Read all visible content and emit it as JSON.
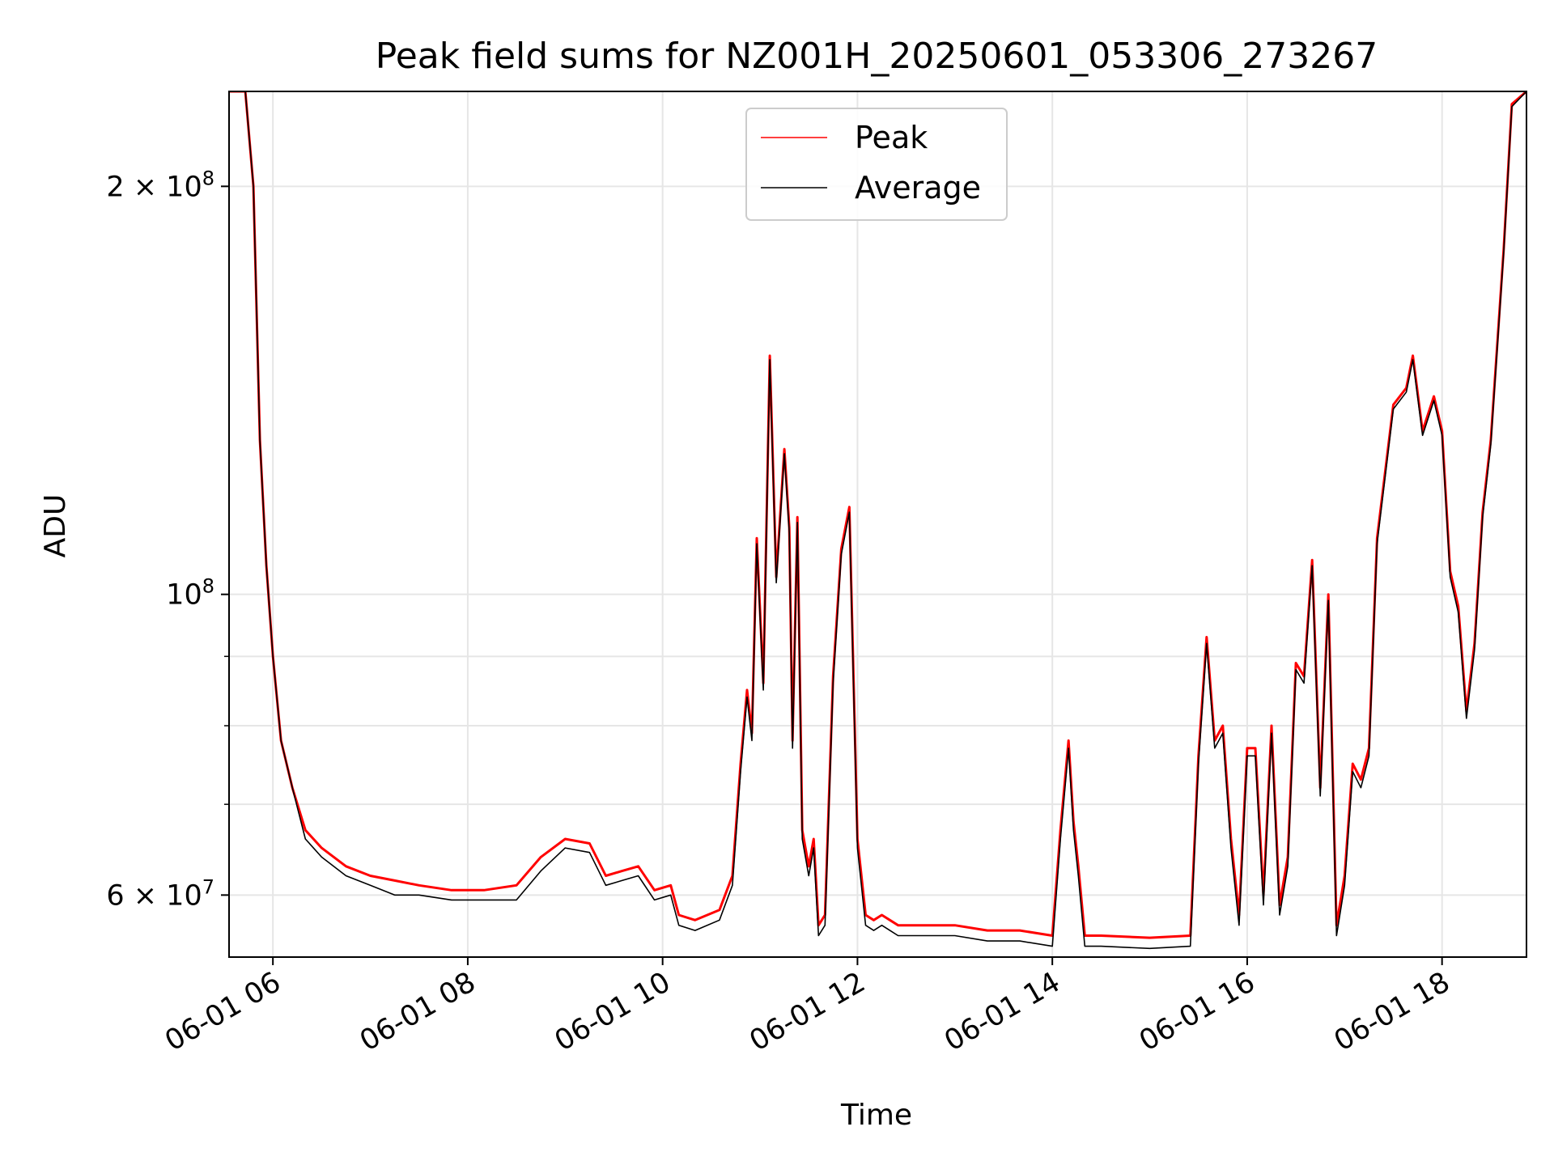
{
  "chart_data": {
    "type": "line",
    "title": "Peak field sums for NZ001H_20250601_053306_273267",
    "xlabel": "Time",
    "ylabel": "ADU",
    "yscale": "log",
    "xlim": [
      "2025-06-01 05:33",
      "2025-06-01 18:52"
    ],
    "ylim": [
      54000000,
      235000000
    ],
    "x_ticks": [
      "06-01 06",
      "06-01 08",
      "06-01 10",
      "06-01 12",
      "06-01 14",
      "06-01 16",
      "06-01 18"
    ],
    "y_ticks": [
      {
        "value": 200000000,
        "mantissa": "2",
        "exponent": "8"
      },
      {
        "value": 100000000,
        "mantissa": "",
        "exponent": "8"
      },
      {
        "value": 60000000,
        "mantissa": "6",
        "exponent": "7"
      }
    ],
    "grid": true,
    "legend_position": "upper center",
    "series": [
      {
        "name": "Peak",
        "color": "#ff0000",
        "x": [
          "2025-06-01 05:33",
          "2025-06-01 05:43",
          "2025-06-01 05:48",
          "2025-06-01 05:52",
          "2025-06-01 05:56",
          "2025-06-01 06:00",
          "2025-06-01 06:05",
          "2025-06-01 06:12",
          "2025-06-01 06:20",
          "2025-06-01 06:30",
          "2025-06-01 06:45",
          "2025-06-01 07:00",
          "2025-06-01 07:15",
          "2025-06-01 07:30",
          "2025-06-01 07:50",
          "2025-06-01 08:10",
          "2025-06-01 08:30",
          "2025-06-01 08:45",
          "2025-06-01 09:00",
          "2025-06-01 09:15",
          "2025-06-01 09:25",
          "2025-06-01 09:35",
          "2025-06-01 09:45",
          "2025-06-01 09:55",
          "2025-06-01 10:05",
          "2025-06-01 10:10",
          "2025-06-01 10:20",
          "2025-06-01 10:35",
          "2025-06-01 10:43",
          "2025-06-01 10:48",
          "2025-06-01 10:52",
          "2025-06-01 10:55",
          "2025-06-01 10:58",
          "2025-06-01 11:02",
          "2025-06-01 11:06",
          "2025-06-01 11:10",
          "2025-06-01 11:15",
          "2025-06-01 11:18",
          "2025-06-01 11:20",
          "2025-06-01 11:23",
          "2025-06-01 11:26",
          "2025-06-01 11:30",
          "2025-06-01 11:33",
          "2025-06-01 11:36",
          "2025-06-01 11:40",
          "2025-06-01 11:45",
          "2025-06-01 11:50",
          "2025-06-01 11:55",
          "2025-06-01 12:00",
          "2025-06-01 12:05",
          "2025-06-01 12:10",
          "2025-06-01 12:15",
          "2025-06-01 12:20",
          "2025-06-01 12:25",
          "2025-06-01 12:30",
          "2025-06-01 12:40",
          "2025-06-01 13:00",
          "2025-06-01 13:20",
          "2025-06-01 13:40",
          "2025-06-01 14:00",
          "2025-06-01 14:05",
          "2025-06-01 14:10",
          "2025-06-01 14:13",
          "2025-06-01 14:16",
          "2025-06-01 14:20",
          "2025-06-01 14:25",
          "2025-06-01 14:30",
          "2025-06-01 15:00",
          "2025-06-01 15:25",
          "2025-06-01 15:30",
          "2025-06-01 15:35",
          "2025-06-01 15:40",
          "2025-06-01 15:45",
          "2025-06-01 15:50",
          "2025-06-01 15:55",
          "2025-06-01 16:00",
          "2025-06-01 16:05",
          "2025-06-01 16:10",
          "2025-06-01 16:15",
          "2025-06-01 16:20",
          "2025-06-01 16:25",
          "2025-06-01 16:30",
          "2025-06-01 16:35",
          "2025-06-01 16:40",
          "2025-06-01 16:45",
          "2025-06-01 16:50",
          "2025-06-01 16:55",
          "2025-06-01 17:00",
          "2025-06-01 17:05",
          "2025-06-01 17:10",
          "2025-06-01 17:15",
          "2025-06-01 17:20",
          "2025-06-01 17:30",
          "2025-06-01 17:38",
          "2025-06-01 17:42",
          "2025-06-01 17:48",
          "2025-06-01 17:55",
          "2025-06-01 18:00",
          "2025-06-01 18:05",
          "2025-06-01 18:10",
          "2025-06-01 18:15",
          "2025-06-01 18:20",
          "2025-06-01 18:25",
          "2025-06-01 18:30",
          "2025-06-01 18:38",
          "2025-06-01 18:43",
          "2025-06-01 18:52"
        ],
        "y": [
          235000000,
          235000000,
          200000000,
          130000000,
          105000000,
          90000000,
          78000000,
          72000000,
          67000000,
          65000000,
          63000000,
          62000000,
          61500000,
          61000000,
          60500000,
          60500000,
          61000000,
          64000000,
          66000000,
          65500000,
          62000000,
          62500000,
          63000000,
          60500000,
          61000000,
          58000000,
          57500000,
          58500000,
          62000000,
          75000000,
          85000000,
          79000000,
          110000000,
          86000000,
          150000000,
          103000000,
          128000000,
          112000000,
          78000000,
          114000000,
          67000000,
          63000000,
          66000000,
          57000000,
          58000000,
          87000000,
          108000000,
          116000000,
          66000000,
          58000000,
          57500000,
          58000000,
          57500000,
          57000000,
          57000000,
          57000000,
          57000000,
          56500000,
          56500000,
          56000000,
          67000000,
          78000000,
          68000000,
          63000000,
          56000000,
          56000000,
          56000000,
          55800000,
          56000000,
          76000000,
          93000000,
          78000000,
          80000000,
          66000000,
          58000000,
          77000000,
          77000000,
          60000000,
          80000000,
          59000000,
          64000000,
          89000000,
          87000000,
          106000000,
          72000000,
          100000000,
          57000000,
          62000000,
          75000000,
          73000000,
          77000000,
          110000000,
          138000000,
          142000000,
          150000000,
          132000000,
          140000000,
          132000000,
          104000000,
          98000000,
          82000000,
          92000000,
          115000000,
          130000000,
          180000000,
          230000000,
          235000000
        ]
      },
      {
        "name": "Average",
        "color": "#000000",
        "x": [
          "2025-06-01 05:33",
          "2025-06-01 05:43",
          "2025-06-01 05:48",
          "2025-06-01 05:52",
          "2025-06-01 05:56",
          "2025-06-01 06:00",
          "2025-06-01 06:05",
          "2025-06-01 06:12",
          "2025-06-01 06:20",
          "2025-06-01 06:30",
          "2025-06-01 06:45",
          "2025-06-01 07:00",
          "2025-06-01 07:15",
          "2025-06-01 07:30",
          "2025-06-01 07:50",
          "2025-06-01 08:10",
          "2025-06-01 08:30",
          "2025-06-01 08:45",
          "2025-06-01 09:00",
          "2025-06-01 09:15",
          "2025-06-01 09:25",
          "2025-06-01 09:35",
          "2025-06-01 09:45",
          "2025-06-01 09:55",
          "2025-06-01 10:05",
          "2025-06-01 10:10",
          "2025-06-01 10:20",
          "2025-06-01 10:35",
          "2025-06-01 10:43",
          "2025-06-01 10:48",
          "2025-06-01 10:52",
          "2025-06-01 10:55",
          "2025-06-01 10:58",
          "2025-06-01 11:02",
          "2025-06-01 11:06",
          "2025-06-01 11:10",
          "2025-06-01 11:15",
          "2025-06-01 11:18",
          "2025-06-01 11:20",
          "2025-06-01 11:23",
          "2025-06-01 11:26",
          "2025-06-01 11:30",
          "2025-06-01 11:33",
          "2025-06-01 11:36",
          "2025-06-01 11:40",
          "2025-06-01 11:45",
          "2025-06-01 11:50",
          "2025-06-01 11:55",
          "2025-06-01 12:00",
          "2025-06-01 12:05",
          "2025-06-01 12:10",
          "2025-06-01 12:15",
          "2025-06-01 12:20",
          "2025-06-01 12:25",
          "2025-06-01 12:30",
          "2025-06-01 12:40",
          "2025-06-01 13:00",
          "2025-06-01 13:20",
          "2025-06-01 13:40",
          "2025-06-01 14:00",
          "2025-06-01 14:05",
          "2025-06-01 14:10",
          "2025-06-01 14:13",
          "2025-06-01 14:16",
          "2025-06-01 14:20",
          "2025-06-01 14:25",
          "2025-06-01 14:30",
          "2025-06-01 15:00",
          "2025-06-01 15:25",
          "2025-06-01 15:30",
          "2025-06-01 15:35",
          "2025-06-01 15:40",
          "2025-06-01 15:45",
          "2025-06-01 15:50",
          "2025-06-01 15:55",
          "2025-06-01 16:00",
          "2025-06-01 16:05",
          "2025-06-01 16:10",
          "2025-06-01 16:15",
          "2025-06-01 16:20",
          "2025-06-01 16:25",
          "2025-06-01 16:30",
          "2025-06-01 16:35",
          "2025-06-01 16:40",
          "2025-06-01 16:45",
          "2025-06-01 16:50",
          "2025-06-01 16:55",
          "2025-06-01 17:00",
          "2025-06-01 17:05",
          "2025-06-01 17:10",
          "2025-06-01 17:15",
          "2025-06-01 17:20",
          "2025-06-01 17:30",
          "2025-06-01 17:38",
          "2025-06-01 17:42",
          "2025-06-01 17:48",
          "2025-06-01 17:55",
          "2025-06-01 18:00",
          "2025-06-01 18:05",
          "2025-06-01 18:10",
          "2025-06-01 18:15",
          "2025-06-01 18:20",
          "2025-06-01 18:25",
          "2025-06-01 18:30",
          "2025-06-01 18:38",
          "2025-06-01 18:43",
          "2025-06-01 18:52"
        ],
        "y": [
          235000000,
          235000000,
          200000000,
          130000000,
          105000000,
          90000000,
          78000000,
          72000000,
          66000000,
          64000000,
          62000000,
          61000000,
          60000000,
          60000000,
          59500000,
          59500000,
          59500000,
          62500000,
          65000000,
          64500000,
          61000000,
          61500000,
          62000000,
          59500000,
          60000000,
          57000000,
          56500000,
          57500000,
          61000000,
          74000000,
          84000000,
          78000000,
          109000000,
          85000000,
          149000000,
          102000000,
          127000000,
          111000000,
          77000000,
          113000000,
          66000000,
          62000000,
          65000000,
          56000000,
          57000000,
          86000000,
          107000000,
          115000000,
          65000000,
          57000000,
          56500000,
          57000000,
          56500000,
          56000000,
          56000000,
          56000000,
          56000000,
          55500000,
          55500000,
          55000000,
          66000000,
          77000000,
          67000000,
          62000000,
          55000000,
          55000000,
          55000000,
          54800000,
          55000000,
          75000000,
          92000000,
          77000000,
          79000000,
          65000000,
          57000000,
          76000000,
          76000000,
          59000000,
          79000000,
          58000000,
          63000000,
          88000000,
          86000000,
          105000000,
          71000000,
          99000000,
          56000000,
          61000000,
          74000000,
          72000000,
          76000000,
          109000000,
          137000000,
          141000000,
          149000000,
          131000000,
          139000000,
          131000000,
          103000000,
          97000000,
          81000000,
          91000000,
          114000000,
          129000000,
          179000000,
          229000000,
          235000000
        ]
      }
    ]
  }
}
